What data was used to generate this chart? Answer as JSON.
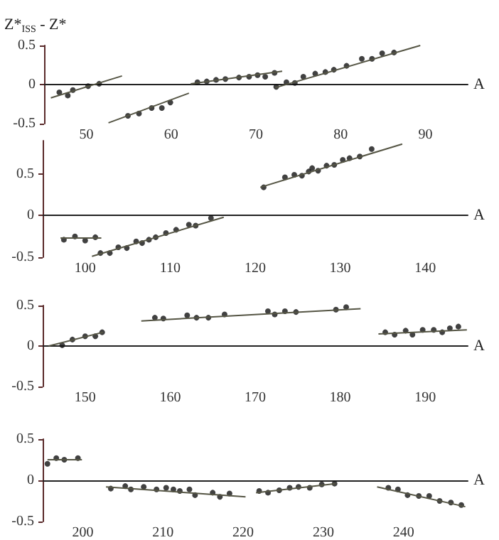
{
  "chart_data": [
    {
      "type": "scatter",
      "ylabel": "Z*$_{ISS}$ - Z*",
      "xlabel": "A",
      "xlim": [
        45,
        95
      ],
      "xticks": [
        50,
        60,
        70,
        80,
        90
      ],
      "ylim": [
        -0.5,
        0.5
      ],
      "yticks": [
        -0.5,
        0,
        0.5
      ],
      "series": [
        {
          "type": "scatter",
          "marker": "circle",
          "color": "#111111",
          "x": [
            46.8,
            47.8,
            48.4,
            50.2,
            51.5
          ],
          "values": [
            -0.1,
            -0.14,
            -0.07,
            -0.02,
            0.01
          ]
        },
        {
          "type": "line",
          "marker": "none",
          "color": "#555544",
          "x": [
            45.8,
            54.2
          ],
          "values": [
            -0.17,
            0.11
          ]
        },
        {
          "type": "scatter",
          "marker": "circle",
          "color": "#111111",
          "x": [
            54.9,
            56.2,
            57.7,
            58.9,
            59.9
          ],
          "values": [
            -0.4,
            -0.37,
            -0.3,
            -0.3,
            -0.23
          ]
        },
        {
          "type": "line",
          "marker": "none",
          "color": "#555544",
          "x": [
            52.6,
            62.1
          ],
          "values": [
            -0.49,
            -0.11
          ]
        },
        {
          "type": "scatter",
          "marker": "circle",
          "color": "#111111",
          "x": [
            63.1,
            64.2,
            65.3,
            66.4,
            68.0,
            69.2,
            70.2,
            71.1,
            72.2
          ],
          "values": [
            0.03,
            0.04,
            0.06,
            0.07,
            0.09,
            0.1,
            0.12,
            0.1,
            0.15
          ]
        },
        {
          "type": "line",
          "marker": "none",
          "color": "#555544",
          "x": [
            62.3,
            73.1
          ],
          "values": [
            0.01,
            0.17
          ]
        },
        {
          "type": "scatter",
          "marker": "circle",
          "color": "#111111",
          "x": [
            72.4,
            73.6,
            74.6,
            75.6,
            77.0,
            78.2,
            79.2,
            80.7,
            82.5,
            83.7,
            84.9,
            86.3
          ],
          "values": [
            -0.03,
            0.03,
            0.02,
            0.1,
            0.14,
            0.16,
            0.19,
            0.24,
            0.33,
            0.33,
            0.4,
            0.41
          ]
        },
        {
          "type": "line",
          "marker": "none",
          "color": "#555544",
          "x": [
            72.3,
            89.4
          ],
          "values": [
            -0.04,
            0.5
          ]
        }
      ]
    },
    {
      "type": "scatter",
      "xlabel": "A",
      "xlim": [
        95,
        145
      ],
      "xticks": [
        100,
        110,
        120,
        130,
        140
      ],
      "ylim": [
        -0.5,
        0.9
      ],
      "yticks": [
        -0.5,
        0,
        0.5
      ],
      "series": [
        {
          "type": "scatter",
          "marker": "circle",
          "color": "#111111",
          "x": [
            97.5,
            98.8,
            100.0,
            101.2
          ],
          "values": [
            -0.29,
            -0.25,
            -0.3,
            -0.26
          ]
        },
        {
          "type": "line",
          "marker": "none",
          "color": "#555544",
          "x": [
            97.1,
            101.9
          ],
          "values": [
            -0.27,
            -0.27
          ]
        },
        {
          "type": "scatter",
          "marker": "circle",
          "color": "#111111",
          "x": [
            101.8,
            102.9,
            103.9,
            104.9,
            106.0,
            106.7,
            107.5,
            108.3,
            109.5,
            110.7,
            112.2,
            113.0,
            114.8
          ],
          "values": [
            -0.45,
            -0.45,
            -0.38,
            -0.39,
            -0.31,
            -0.33,
            -0.29,
            -0.26,
            -0.21,
            -0.17,
            -0.11,
            -0.12,
            -0.03
          ]
        },
        {
          "type": "line",
          "marker": "none",
          "color": "#555544",
          "x": [
            100.8,
            116.3
          ],
          "values": [
            -0.49,
            -0.02
          ]
        },
        {
          "type": "scatter",
          "marker": "circle",
          "color": "#111111",
          "x": [
            121.0,
            123.5,
            124.6,
            125.5,
            126.3,
            126.7,
            127.4,
            128.4,
            129.3,
            130.3,
            131.1,
            132.3,
            133.7
          ],
          "values": [
            0.34,
            0.46,
            0.49,
            0.48,
            0.53,
            0.57,
            0.54,
            0.6,
            0.61,
            0.67,
            0.69,
            0.71,
            0.8
          ]
        },
        {
          "type": "line",
          "marker": "none",
          "color": "#555544",
          "x": [
            120.6,
            137.3
          ],
          "values": [
            0.34,
            0.86
          ]
        }
      ]
    },
    {
      "type": "scatter",
      "xlabel": "A",
      "xlim": [
        145,
        195
      ],
      "xticks": [
        150,
        160,
        170,
        180,
        190
      ],
      "ylim": [
        -0.5,
        0.5
      ],
      "yticks": [
        -0.5,
        0,
        0.5
      ],
      "series": [
        {
          "type": "scatter",
          "marker": "circle",
          "color": "#111111",
          "x": [
            147.3,
            148.5,
            150.0,
            151.2,
            152.0
          ],
          "values": [
            0.01,
            0.08,
            0.12,
            0.12,
            0.17
          ]
        },
        {
          "type": "line",
          "marker": "none",
          "color": "#555544",
          "x": [
            145.7,
            152.1
          ],
          "values": [
            0.0,
            0.17
          ]
        },
        {
          "type": "scatter",
          "marker": "circle",
          "color": "#111111",
          "x": [
            158.2,
            159.2,
            162.0,
            163.1,
            164.5,
            166.4,
            171.5,
            172.3,
            173.5,
            174.8,
            179.5,
            180.7
          ],
          "values": [
            0.35,
            0.34,
            0.38,
            0.35,
            0.35,
            0.39,
            0.43,
            0.39,
            0.43,
            0.42,
            0.45,
            0.48
          ]
        },
        {
          "type": "line",
          "marker": "none",
          "color": "#555544",
          "x": [
            156.6,
            182.4
          ],
          "values": [
            0.31,
            0.46
          ]
        },
        {
          "type": "scatter",
          "marker": "circle",
          "color": "#111111",
          "x": [
            185.3,
            186.4,
            187.7,
            188.5,
            189.7,
            191.0,
            192.0,
            192.9,
            193.9
          ],
          "values": [
            0.17,
            0.14,
            0.19,
            0.14,
            0.2,
            0.2,
            0.17,
            0.22,
            0.24
          ]
        },
        {
          "type": "line",
          "marker": "none",
          "color": "#555544",
          "x": [
            184.5,
            194.9
          ],
          "values": [
            0.15,
            0.2
          ]
        }
      ]
    },
    {
      "type": "scatter",
      "xlabel": "A",
      "xlim": [
        195,
        248
      ],
      "xticks": [
        200,
        210,
        220,
        230,
        240
      ],
      "ylim": [
        -0.5,
        0.5
      ],
      "yticks": [
        -0.5,
        0,
        0.5
      ],
      "series": [
        {
          "type": "scatter",
          "marker": "circle",
          "color": "#111111",
          "x": [
            195.6,
            196.7,
            197.7,
            199.4
          ],
          "values": [
            0.2,
            0.27,
            0.25,
            0.27
          ]
        },
        {
          "type": "line",
          "marker": "none",
          "color": "#555544",
          "x": [
            195.6,
            199.9
          ],
          "values": [
            0.25,
            0.25
          ]
        },
        {
          "type": "scatter",
          "marker": "circle",
          "color": "#111111",
          "x": [
            203.5,
            205.3,
            206.0,
            207.6,
            209.2,
            210.4,
            211.3,
            212.1,
            213.3,
            214.0,
            216.2,
            217.1,
            218.3
          ],
          "values": [
            -0.1,
            -0.07,
            -0.11,
            -0.08,
            -0.11,
            -0.09,
            -0.11,
            -0.13,
            -0.11,
            -0.18,
            -0.15,
            -0.2,
            -0.16
          ]
        },
        {
          "type": "line",
          "marker": "none",
          "color": "#555544",
          "x": [
            202.9,
            220.3
          ],
          "values": [
            -0.08,
            -0.2
          ]
        },
        {
          "type": "scatter",
          "marker": "circle",
          "color": "#111111",
          "x": [
            222.0,
            223.1,
            224.5,
            225.8,
            226.9,
            228.3,
            229.8,
            231.4
          ],
          "values": [
            -0.13,
            -0.15,
            -0.12,
            -0.09,
            -0.08,
            -0.09,
            -0.05,
            -0.04
          ]
        },
        {
          "type": "line",
          "marker": "none",
          "color": "#555544",
          "x": [
            221.6,
            231.5
          ],
          "values": [
            -0.15,
            -0.04
          ]
        },
        {
          "type": "scatter",
          "marker": "circle",
          "color": "#111111",
          "x": [
            238.1,
            239.3,
            240.5,
            241.9,
            243.2,
            244.5,
            245.9,
            247.2
          ],
          "values": [
            -0.09,
            -0.11,
            -0.18,
            -0.19,
            -0.19,
            -0.25,
            -0.27,
            -0.3
          ]
        },
        {
          "type": "line",
          "marker": "none",
          "color": "#555544",
          "x": [
            236.7,
            247.7
          ],
          "values": [
            -0.08,
            -0.32
          ]
        }
      ]
    }
  ]
}
